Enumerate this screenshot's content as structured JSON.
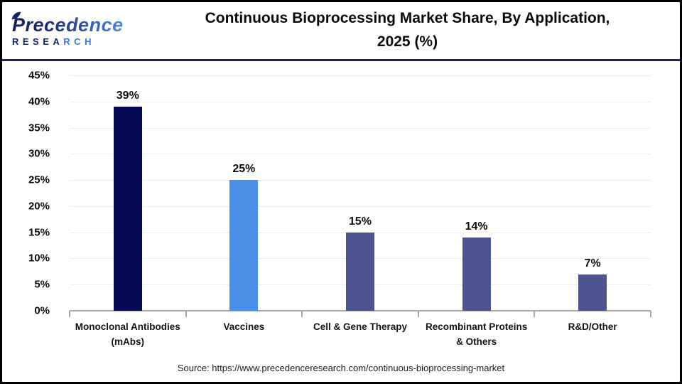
{
  "header": {
    "logo": {
      "name": "Precedence",
      "sub_dark": "RESEA",
      "sub_light": "RCH"
    },
    "title_line1": "Continuous Bioprocessing Market Share, By Application,",
    "title_line2": "2025 (%)"
  },
  "chart_data": {
    "type": "bar",
    "title": "Continuous Bioprocessing Market Share, By Application, 2025 (%)",
    "categories": [
      "Monoclonal Antibodies (mAbs)",
      "Vaccines",
      "Cell & Gene Therapy",
      "Recombinant Proteins & Others",
      "R&D/Other"
    ],
    "values": [
      39,
      25,
      15,
      14,
      7
    ],
    "value_labels": [
      "39%",
      "25%",
      "15%",
      "14%",
      "7%"
    ],
    "bar_colors": [
      "#040b52",
      "#4a90e8",
      "#4b548f",
      "#4b548f",
      "#4b548f"
    ],
    "xlabel": "",
    "ylabel": "",
    "ylim": [
      0,
      45
    ],
    "ytick_step": 5,
    "ytick_labels": [
      "0%",
      "5%",
      "10%",
      "15%",
      "20%",
      "25%",
      "30%",
      "35%",
      "40%",
      "45%"
    ],
    "grid": true,
    "legend": false,
    "colors": {
      "gridline": "#ececec",
      "axis": "#a6a6a6",
      "label_text": "#0d0d0d"
    }
  },
  "footer": {
    "source": "Source: https://www.precedenceresearch.com/continuous-bioprocessing-market"
  }
}
